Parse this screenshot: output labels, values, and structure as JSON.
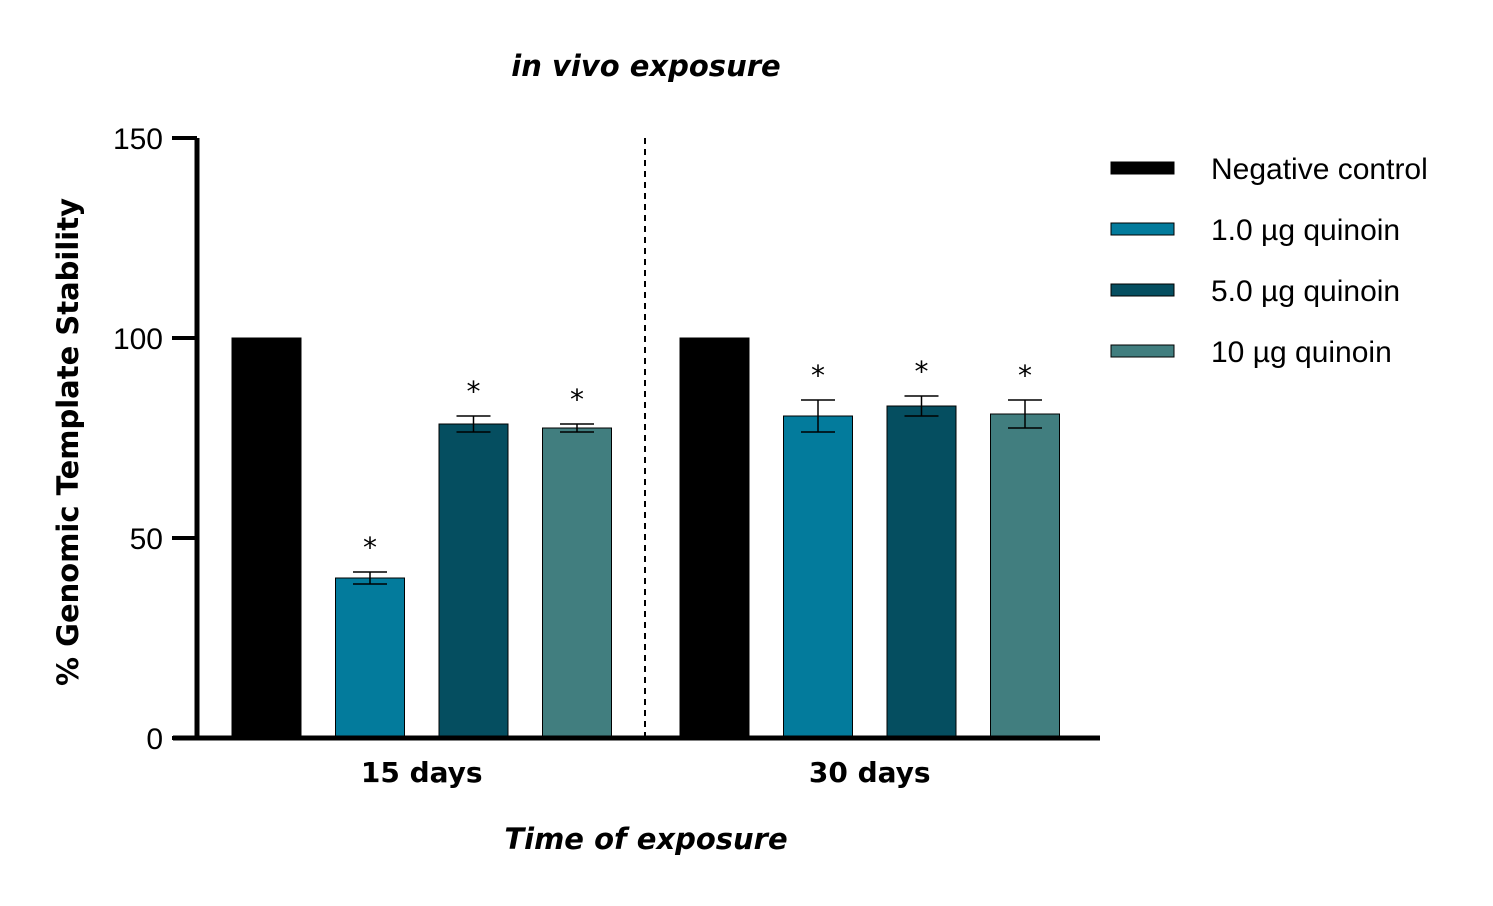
{
  "chart_data": {
    "type": "bar",
    "title": "in vivo exposure",
    "xlabel": "Time of exposure",
    "ylabel": "% Genomic Template Stability",
    "ylim": [
      0,
      150
    ],
    "yticks": [
      0,
      50,
      100,
      150
    ],
    "categories": [
      "15 days",
      "30 days"
    ],
    "legend_position": "right",
    "grid": false,
    "group_separator": "dashed",
    "series": [
      {
        "name": "Negative control",
        "color": "#000000",
        "values": [
          100,
          100
        ],
        "error": [
          0,
          0
        ],
        "significant": [
          false,
          false
        ]
      },
      {
        "name": "1.0 µg quinoin",
        "color": "#037b9c",
        "values": [
          40,
          80.5
        ],
        "error": [
          1.5,
          4
        ],
        "significant": [
          true,
          true
        ]
      },
      {
        "name": "5.0 µg quinoin",
        "color": "#054e60",
        "values": [
          78.5,
          83
        ],
        "error": [
          2,
          2.5
        ],
        "significant": [
          true,
          true
        ]
      },
      {
        "name": "10 µg quinoin",
        "color": "#417e7f",
        "values": [
          77.5,
          81
        ],
        "error": [
          1,
          3.5
        ],
        "significant": [
          true,
          true
        ]
      }
    ],
    "significance_marker": "*"
  }
}
